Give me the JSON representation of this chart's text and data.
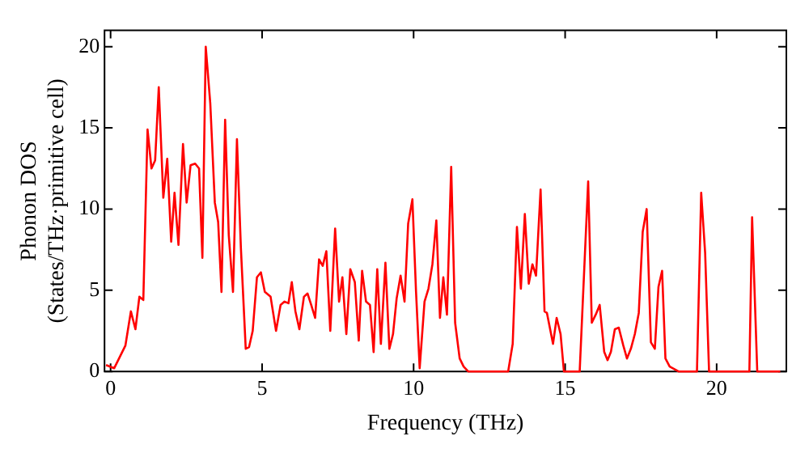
{
  "chart_data": {
    "type": "line",
    "xlabel": "Frequency (THz)",
    "ylabel": "Phonon DOS\n(States/THz·primitive cell)",
    "xlim": [
      -0.2,
      22.3
    ],
    "ylim": [
      0,
      21
    ],
    "xticks": [
      0,
      5,
      10,
      15,
      20
    ],
    "yticks": [
      0,
      5,
      10,
      15,
      20
    ],
    "grid": false,
    "legend": false,
    "marker": "none",
    "line_style": "solid",
    "series": [
      {
        "color": "#ff0000",
        "x": [
          -0.15,
          0.12,
          0.49,
          0.67,
          0.82,
          0.95,
          1.08,
          1.22,
          1.35,
          1.47,
          1.59,
          1.74,
          1.87,
          2.0,
          2.11,
          2.24,
          2.39,
          2.51,
          2.64,
          2.79,
          2.92,
          3.03,
          3.14,
          3.29,
          3.44,
          3.55,
          3.66,
          3.78,
          3.9,
          4.04,
          4.17,
          4.3,
          4.46,
          4.57,
          4.69,
          4.83,
          4.96,
          5.09,
          5.28,
          5.46,
          5.61,
          5.74,
          5.87,
          5.98,
          6.1,
          6.23,
          6.38,
          6.5,
          6.62,
          6.75,
          6.88,
          7.0,
          7.12,
          7.25,
          7.41,
          7.54,
          7.65,
          7.78,
          7.91,
          8.06,
          8.19,
          8.3,
          8.43,
          8.56,
          8.68,
          8.8,
          8.92,
          9.07,
          9.2,
          9.32,
          9.44,
          9.57,
          9.7,
          9.82,
          9.96,
          10.08,
          10.2,
          10.36,
          10.49,
          10.62,
          10.75,
          10.87,
          10.98,
          11.1,
          11.24,
          11.37,
          11.52,
          11.65,
          11.8,
          13.12,
          13.27,
          13.41,
          13.54,
          13.67,
          13.8,
          13.92,
          14.04,
          14.19,
          14.32,
          14.4,
          14.6,
          14.72,
          14.85,
          14.96,
          15.48,
          15.76,
          15.88,
          16.01,
          16.14,
          16.29,
          16.4,
          16.51,
          16.64,
          16.77,
          16.92,
          17.04,
          17.17,
          17.3,
          17.43,
          17.56,
          17.69,
          17.83,
          17.96,
          18.08,
          18.2,
          18.31,
          18.45,
          18.74,
          19.35,
          19.49,
          19.62,
          19.75,
          21.08,
          21.17,
          21.34,
          22.1
        ],
        "values": [
          0.4,
          0.2,
          1.6,
          3.7,
          2.6,
          4.6,
          4.4,
          14.9,
          12.5,
          13,
          17.5,
          10.7,
          13.1,
          8.0,
          11,
          7.8,
          14,
          10.4,
          12.7,
          12.8,
          12.5,
          7.0,
          20,
          16.5,
          10.4,
          9.2,
          4.9,
          15.5,
          8.4,
          4.9,
          14.3,
          7.6,
          1.4,
          1.5,
          2.5,
          5.8,
          6.1,
          4.9,
          4.6,
          2.5,
          4.1,
          4.3,
          4.2,
          5.5,
          3.7,
          2.6,
          4.6,
          4.8,
          4.1,
          3.3,
          6.9,
          6.5,
          7.4,
          2.5,
          8.8,
          4.3,
          5.8,
          2.3,
          6.3,
          5.5,
          1.9,
          6.2,
          4.3,
          4.1,
          1.2,
          6.3,
          1.7,
          6.7,
          1.4,
          2.3,
          4.5,
          5.9,
          4.3,
          9.1,
          10.6,
          4.9,
          0.2,
          4.3,
          5.1,
          6.6,
          9.3,
          3.3,
          5.8,
          3.5,
          12.6,
          3.0,
          0.8,
          0.3,
          0,
          0,
          1.7,
          8.9,
          5.1,
          9.7,
          5.4,
          6.6,
          5.9,
          11.2,
          3.7,
          3.6,
          1.7,
          3.3,
          2.3,
          0,
          0,
          11.7,
          3.0,
          3.5,
          4.1,
          1.2,
          0.7,
          1.2,
          2.6,
          2.7,
          1.6,
          0.8,
          1.4,
          2.3,
          3.6,
          8.6,
          10,
          1.8,
          1.4,
          5.2,
          6.2,
          0.8,
          0.3,
          0,
          0,
          11,
          7.3,
          0,
          0,
          9.5,
          0,
          0
        ]
      }
    ]
  }
}
